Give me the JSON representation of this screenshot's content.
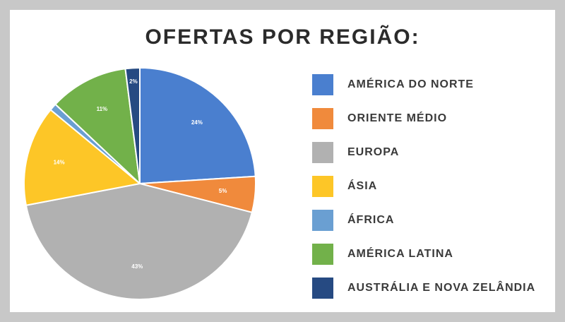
{
  "chart_data": {
    "type": "pie",
    "title": "OFERTAS POR REGIÃO:",
    "slices": [
      {
        "label": "AMÉRICA DO NORTE",
        "value": 24,
        "data_label": "24%",
        "color": "#4a7fcf"
      },
      {
        "label": "ORIENTE MÉDIO",
        "value": 5,
        "data_label": "5%",
        "color": "#f08a3c"
      },
      {
        "label": "EUROPA",
        "value": 43,
        "data_label": "43%",
        "color": "#b1b1b1"
      },
      {
        "label": "ÁSIA",
        "value": 14,
        "data_label": "14%",
        "color": "#fdc627"
      },
      {
        "label": "ÁFRICA",
        "value": 1,
        "data_label": "",
        "color": "#6a9fd2"
      },
      {
        "label": "AMÉRICA LATINA",
        "value": 11,
        "data_label": "11%",
        "color": "#72b14a"
      },
      {
        "label": "AUSTRÁLIA E NOVA ZELÂNDIA",
        "value": 2,
        "data_label": "2%",
        "color": "#264a82"
      }
    ],
    "legend": "right"
  }
}
